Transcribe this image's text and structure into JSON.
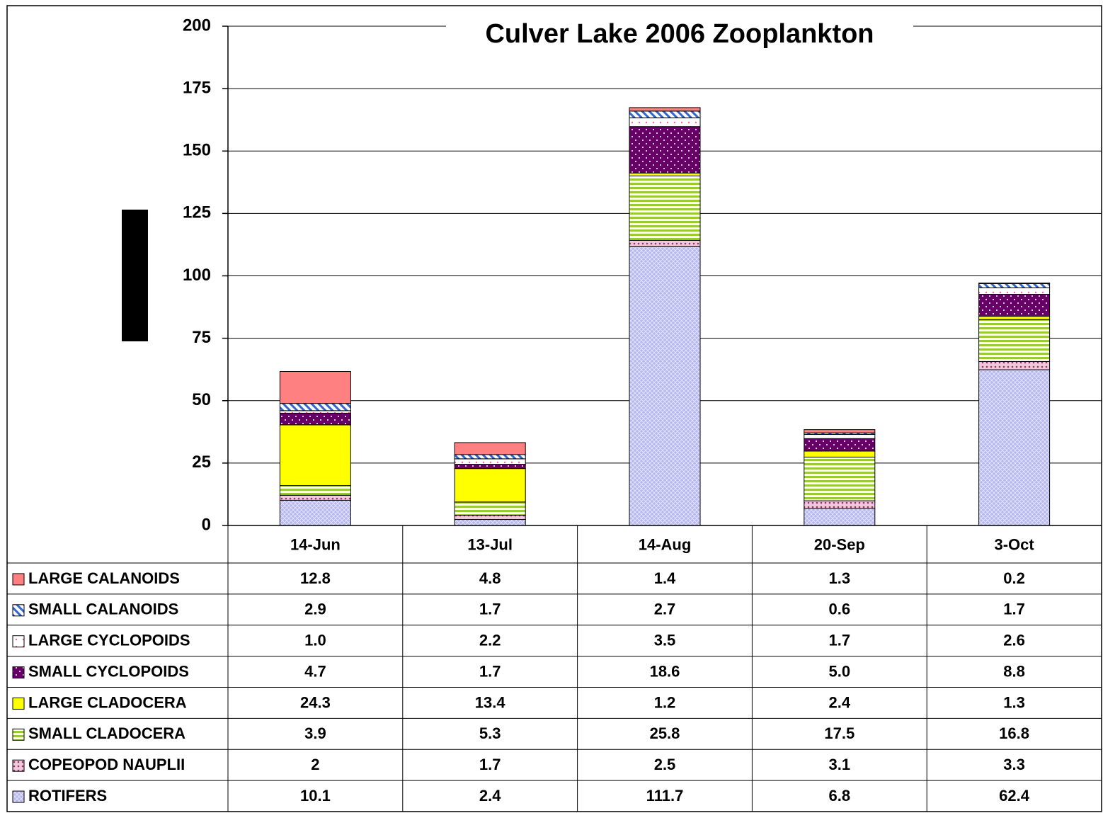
{
  "chart_data": {
    "type": "stacked_bar",
    "title": "Culver Lake  2006 Zooplankton",
    "categories": [
      "14-Jun",
      "13-Jul",
      "14-Aug",
      "20-Sep",
      "3-Oct"
    ],
    "series": [
      {
        "name": "LARGE CALANOIDS",
        "color": "#ff8080",
        "values": [
          12.8,
          4.8,
          1.4,
          1.3,
          0.2
        ]
      },
      {
        "name": "SMALL CALANOIDS",
        "color": "#3366cc",
        "values": [
          2.9,
          1.7,
          2.7,
          0.6,
          1.7
        ]
      },
      {
        "name": "LARGE CYCLOPOIDS",
        "color": "#ff6699",
        "values": [
          1.0,
          2.2,
          3.5,
          1.7,
          2.6
        ],
        "value_labels": [
          "1.0",
          "2.2",
          "3.5",
          "1.7",
          "2.6"
        ]
      },
      {
        "name": "SMALL CYCLOPOIDS",
        "color": "#660066",
        "values": [
          4.7,
          1.7,
          18.6,
          5.0,
          8.8
        ],
        "value_labels": [
          "4.7",
          "1.7",
          "18.6",
          "5.0",
          "8.8"
        ]
      },
      {
        "name": "LARGE CLADOCERA",
        "color": "#ffff00",
        "values": [
          24.3,
          13.4,
          1.2,
          2.4,
          1.3
        ]
      },
      {
        "name": "SMALL CLADOCERA",
        "color": "#99cc33",
        "values": [
          3.9,
          5.3,
          25.8,
          17.5,
          16.8
        ]
      },
      {
        "name": "COPEOPOD NAUPLII",
        "color": "#993366",
        "values": [
          2.0,
          1.7,
          2.5,
          3.1,
          3.3
        ]
      },
      {
        "name": "ROTIFERS",
        "color": "#b8b8f0",
        "values": [
          10.1,
          2.4,
          111.7,
          6.8,
          62.4
        ]
      }
    ],
    "ylim": [
      0,
      200
    ],
    "yticks": [
      0,
      25,
      50,
      75,
      100,
      125,
      150,
      175,
      200
    ],
    "grid": true
  }
}
